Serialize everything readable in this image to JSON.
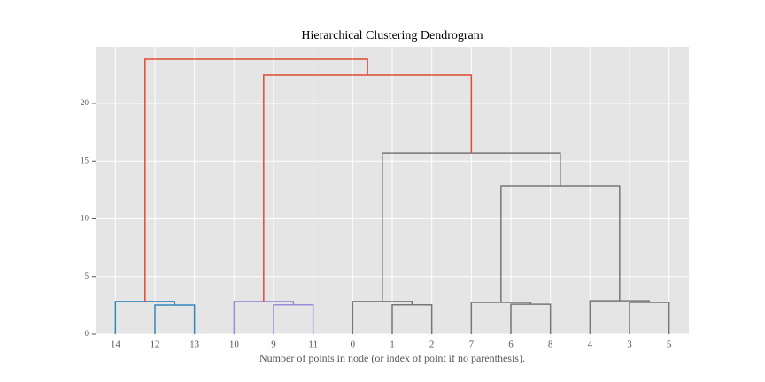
{
  "chart_data": {
    "type": "dendrogram",
    "title": "Hierarchical Clustering Dendrogram",
    "xlabel": "Number of points in node (or index of point if no parenthesis).",
    "categories": [
      "14",
      "12",
      "13",
      "10",
      "9",
      "11",
      "0",
      "1",
      "2",
      "7",
      "6",
      "8",
      "4",
      "3",
      "5"
    ],
    "merges": [
      {
        "children": [
          1,
          2
        ],
        "height": 2.53,
        "color": "#348abd"
      },
      {
        "children": [
          0,
          15
        ],
        "height": 2.84,
        "color": "#348abd"
      },
      {
        "children": [
          4,
          5
        ],
        "height": 2.55,
        "color": "#988ed5"
      },
      {
        "children": [
          3,
          17
        ],
        "height": 2.84,
        "color": "#988ed5"
      },
      {
        "children": [
          7,
          8
        ],
        "height": 2.55,
        "color": "#777777"
      },
      {
        "children": [
          6,
          19
        ],
        "height": 2.84,
        "color": "#777777"
      },
      {
        "children": [
          10,
          11
        ],
        "height": 2.6,
        "color": "#777777"
      },
      {
        "children": [
          9,
          21
        ],
        "height": 2.76,
        "color": "#777777"
      },
      {
        "children": [
          13,
          14
        ],
        "height": 2.76,
        "color": "#777777"
      },
      {
        "children": [
          12,
          23
        ],
        "height": 2.9,
        "color": "#777777"
      },
      {
        "children": [
          22,
          24
        ],
        "height": 12.87,
        "color": "#777777"
      },
      {
        "children": [
          20,
          25
        ],
        "height": 15.7,
        "color": "#777777"
      },
      {
        "children": [
          18,
          26
        ],
        "height": 22.45,
        "color": "#e24a33"
      },
      {
        "children": [
          16,
          27
        ],
        "height": 23.83,
        "color": "#e24a33"
      }
    ],
    "ylim": [
      0,
      24.9
    ],
    "yticks": [
      0,
      5,
      10,
      15,
      20
    ],
    "grid": true
  }
}
